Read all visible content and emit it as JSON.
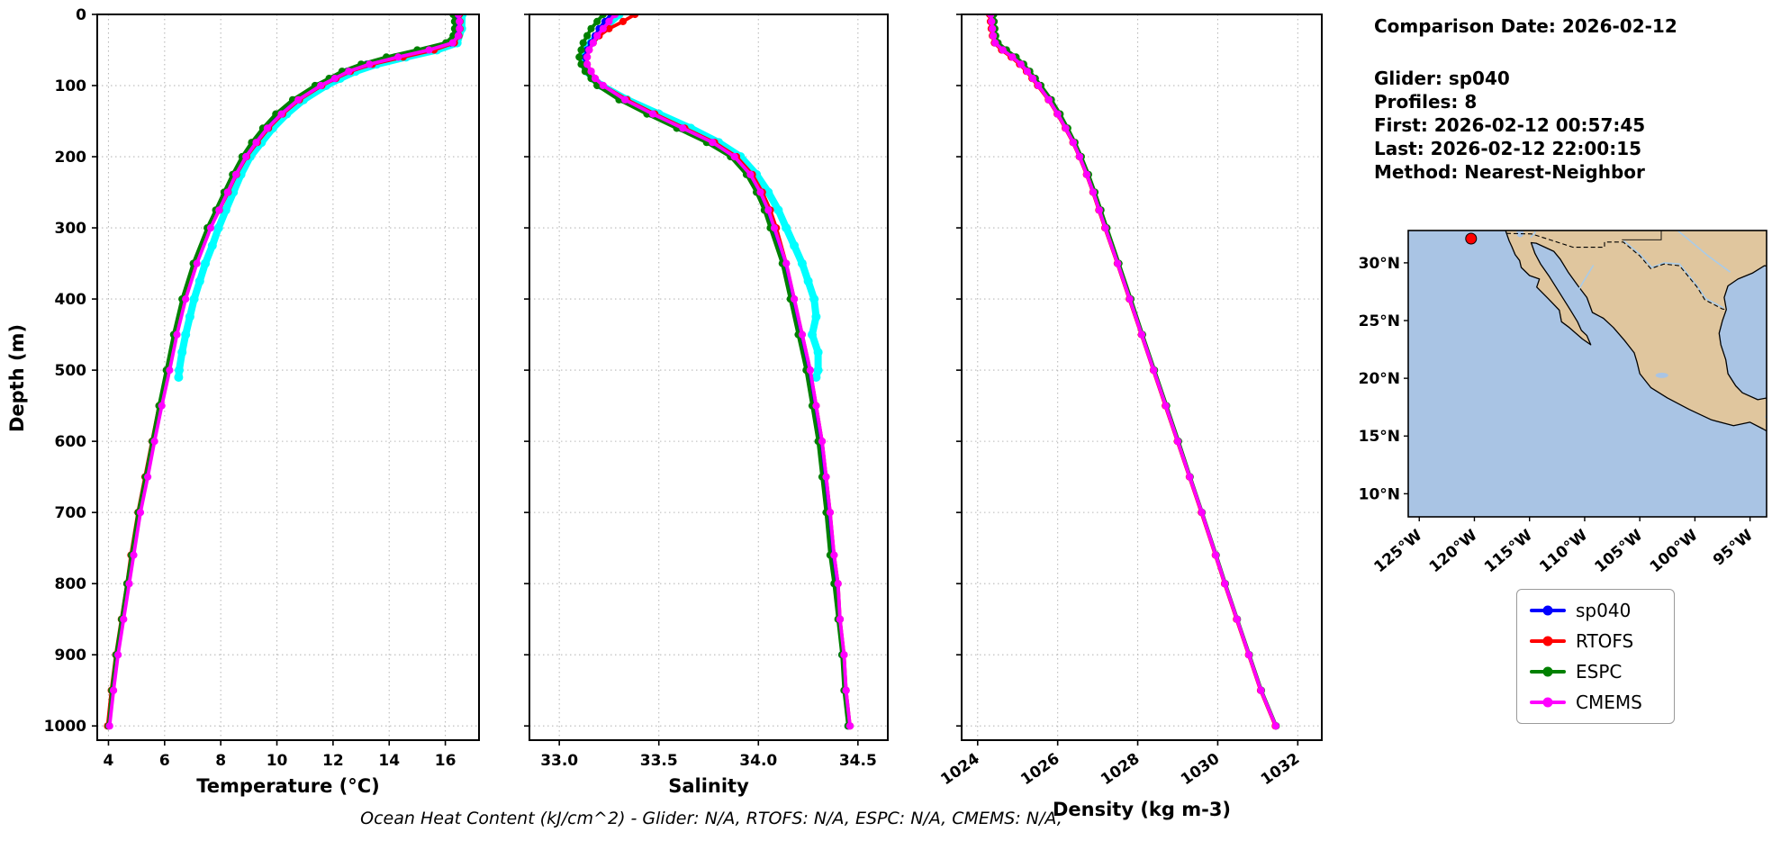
{
  "info_panel": {
    "comparison_date": "Comparison Date: 2026-02-12",
    "glider": "Glider: sp040",
    "profiles": "Profiles: 8",
    "first": "First: 2026-02-12 00:57:45",
    "last": "Last: 2026-02-12 22:00:15",
    "method": "Method: Nearest-Neighbor"
  },
  "footer": {
    "text": "Ocean Heat Content (kJ/cm^2) - Glider: N/A,  RTOFS: N/A,  ESPC: N/A,  CMEMS: N/A,"
  },
  "chart_data": {
    "type": "line",
    "description": "Glider sp040 vs model profiles of temperature, salinity and density versus depth, with location map",
    "depth_label": "Depth (m)",
    "yticks": [
      0,
      100,
      200,
      300,
      400,
      500,
      600,
      700,
      800,
      900,
      1000
    ],
    "depths": [
      0,
      10,
      20,
      30,
      40,
      50,
      60,
      70,
      80,
      90,
      100,
      120,
      140,
      160,
      180,
      200,
      225,
      250,
      275,
      300,
      350,
      400,
      450,
      500,
      550,
      600,
      650,
      700,
      760,
      800,
      850,
      900,
      950,
      1000
    ],
    "raw_depths": [
      0,
      20,
      40,
      50,
      60,
      70,
      80,
      90,
      100,
      120,
      140,
      160,
      180,
      200,
      225,
      250,
      275,
      300,
      325,
      350,
      375,
      400,
      425,
      450,
      475,
      500,
      510
    ],
    "panels": [
      {
        "id": "temperature",
        "xlabel": "Temperature (°C)",
        "xlim": [
          3.6,
          17.2
        ],
        "xticks": [
          4,
          6,
          8,
          10,
          12,
          14,
          16
        ],
        "xtick_labels": [
          "4",
          "6",
          "8",
          "10",
          "12",
          "14",
          "16"
        ],
        "xtick_rotate": 0,
        "show_ytick_labels": true,
        "ylim": [
          0,
          1020
        ]
      },
      {
        "id": "salinity",
        "xlabel": "Salinity",
        "xlim": [
          32.85,
          34.65
        ],
        "xticks": [
          33.0,
          33.5,
          34.0,
          34.5
        ],
        "xtick_labels": [
          "33.0",
          "33.5",
          "34.0",
          "34.5"
        ],
        "xtick_rotate": 0,
        "show_ytick_labels": false,
        "ylim": [
          0,
          1020
        ]
      },
      {
        "id": "density",
        "xlabel": "Density (kg m-3)",
        "xlim": [
          1023.6,
          1032.6
        ],
        "xticks": [
          1024,
          1026,
          1028,
          1030,
          1032
        ],
        "xtick_labels": [
          "1024",
          "1026",
          "1028",
          "1030",
          "1032"
        ],
        "xtick_rotate": -35,
        "show_ytick_labels": false,
        "ylim": [
          0,
          1020
        ]
      }
    ],
    "series": [
      {
        "name": "sp040",
        "color": "#0000FF",
        "temperature": [
          16.4,
          16.45,
          16.45,
          16.4,
          16.2,
          15.3,
          14.2,
          13.2,
          12.5,
          12.0,
          11.5,
          10.7,
          10.1,
          9.6,
          9.2,
          8.85,
          8.5,
          8.2,
          7.9,
          7.6,
          7.1,
          6.7,
          6.4,
          6.15,
          5.85,
          5.6,
          5.35,
          5.1,
          4.85,
          4.7,
          4.5,
          4.3,
          4.15,
          4.0
        ],
        "salinity": [
          33.26,
          33.23,
          33.2,
          33.18,
          33.16,
          33.14,
          33.13,
          33.13,
          33.15,
          33.17,
          33.21,
          33.32,
          33.46,
          33.61,
          33.76,
          33.87,
          33.95,
          34.0,
          34.04,
          34.07,
          34.13,
          34.17,
          34.21,
          34.25,
          34.28,
          34.31,
          34.33,
          34.35,
          34.37,
          34.39,
          34.41,
          34.42,
          34.44,
          34.45
        ],
        "density": [
          1024.35,
          1024.36,
          1024.38,
          1024.4,
          1024.46,
          1024.66,
          1024.9,
          1025.1,
          1025.26,
          1025.4,
          1025.54,
          1025.8,
          1026.02,
          1026.22,
          1026.4,
          1026.56,
          1026.74,
          1026.9,
          1027.05,
          1027.2,
          1027.5,
          1027.8,
          1028.1,
          1028.4,
          1028.7,
          1029.0,
          1029.3,
          1029.6,
          1029.95,
          1030.18,
          1030.48,
          1030.78,
          1031.08,
          1031.45
        ]
      },
      {
        "name": "RTOFS",
        "color": "#FF0000",
        "temperature": [
          16.5,
          16.52,
          16.52,
          16.48,
          16.32,
          15.6,
          14.5,
          13.4,
          12.62,
          12.1,
          11.6,
          10.8,
          10.2,
          9.7,
          9.3,
          8.92,
          8.56,
          8.26,
          7.95,
          7.62,
          7.1,
          6.66,
          6.36,
          6.1,
          5.8,
          5.55,
          5.3,
          5.05,
          4.8,
          4.66,
          4.46,
          4.26,
          4.1,
          3.97
        ],
        "salinity": [
          33.38,
          33.32,
          33.25,
          33.2,
          33.17,
          33.15,
          33.14,
          33.14,
          33.16,
          33.18,
          33.22,
          33.34,
          33.48,
          33.63,
          33.78,
          33.89,
          33.97,
          34.02,
          34.06,
          34.09,
          34.14,
          34.18,
          34.22,
          34.26,
          34.29,
          34.32,
          34.34,
          34.36,
          34.38,
          34.4,
          34.41,
          34.43,
          34.44,
          34.46
        ],
        "density": [
          1024.3,
          1024.32,
          1024.34,
          1024.37,
          1024.42,
          1024.6,
          1024.84,
          1025.05,
          1025.22,
          1025.36,
          1025.5,
          1025.77,
          1025.99,
          1026.19,
          1026.38,
          1026.54,
          1026.72,
          1026.88,
          1027.03,
          1027.18,
          1027.49,
          1027.79,
          1028.09,
          1028.39,
          1028.69,
          1028.99,
          1029.29,
          1029.59,
          1029.94,
          1030.17,
          1030.47,
          1030.77,
          1031.07,
          1031.44
        ]
      },
      {
        "name": "ESPC",
        "color": "#008000",
        "temperature": [
          16.28,
          16.33,
          16.33,
          16.28,
          16.02,
          15.0,
          13.9,
          13.0,
          12.32,
          11.86,
          11.36,
          10.56,
          9.96,
          9.5,
          9.1,
          8.76,
          8.42,
          8.12,
          7.82,
          7.52,
          7.02,
          6.62,
          6.32,
          6.06,
          5.8,
          5.56,
          5.32,
          5.06,
          4.82,
          4.66,
          4.47,
          4.27,
          4.12,
          4.0
        ],
        "salinity": [
          33.22,
          33.19,
          33.16,
          33.14,
          33.12,
          33.11,
          33.1,
          33.11,
          33.13,
          33.16,
          33.19,
          33.3,
          33.44,
          33.59,
          33.74,
          33.86,
          33.94,
          33.99,
          34.03,
          34.06,
          34.12,
          34.16,
          34.2,
          34.24,
          34.27,
          34.3,
          34.32,
          34.34,
          34.36,
          34.38,
          34.4,
          34.42,
          34.43,
          34.45
        ],
        "density": [
          1024.4,
          1024.41,
          1024.43,
          1024.45,
          1024.51,
          1024.72,
          1024.96,
          1025.15,
          1025.3,
          1025.44,
          1025.58,
          1025.84,
          1026.06,
          1026.25,
          1026.43,
          1026.59,
          1026.77,
          1026.93,
          1027.08,
          1027.23,
          1027.53,
          1027.83,
          1028.12,
          1028.42,
          1028.72,
          1029.02,
          1029.31,
          1029.61,
          1029.96,
          1030.19,
          1030.49,
          1030.79,
          1031.09,
          1031.46
        ]
      },
      {
        "name": "CMEMS",
        "color": "#FF00FF",
        "temperature": [
          16.46,
          16.5,
          16.5,
          16.46,
          16.26,
          15.42,
          14.32,
          13.3,
          12.56,
          12.06,
          11.56,
          10.76,
          10.16,
          9.66,
          9.26,
          8.9,
          8.54,
          8.24,
          7.94,
          7.64,
          7.15,
          6.75,
          6.44,
          6.18,
          5.9,
          5.64,
          5.4,
          5.14,
          4.9,
          4.74,
          4.54,
          4.34,
          4.18,
          4.04
        ],
        "salinity": [
          33.28,
          33.25,
          33.22,
          33.19,
          33.17,
          33.15,
          33.14,
          33.14,
          33.16,
          33.18,
          33.22,
          33.33,
          33.47,
          33.62,
          33.77,
          33.88,
          33.96,
          34.01,
          34.05,
          34.08,
          34.14,
          34.18,
          34.22,
          34.26,
          34.29,
          34.32,
          34.34,
          34.36,
          34.38,
          34.4,
          34.41,
          34.43,
          34.44,
          34.46
        ],
        "density": [
          1024.33,
          1024.35,
          1024.37,
          1024.39,
          1024.44,
          1024.63,
          1024.87,
          1025.08,
          1025.24,
          1025.38,
          1025.52,
          1025.78,
          1026.0,
          1026.2,
          1026.39,
          1026.55,
          1026.73,
          1026.89,
          1027.04,
          1027.19,
          1027.5,
          1027.8,
          1028.1,
          1028.4,
          1028.7,
          1029.0,
          1029.3,
          1029.6,
          1029.95,
          1030.18,
          1030.48,
          1030.78,
          1031.08,
          1031.45
        ]
      }
    ],
    "raw": {
      "name": "glider-raw-scatter",
      "color": "#00FFFF",
      "temperature": [
        16.6,
        16.58,
        16.42,
        15.7,
        14.6,
        13.55,
        12.8,
        12.25,
        11.75,
        10.95,
        10.35,
        9.85,
        9.45,
        9.05,
        8.72,
        8.45,
        8.18,
        7.92,
        7.7,
        7.45,
        7.25,
        7.05,
        6.9,
        6.75,
        6.62,
        6.52,
        6.5
      ],
      "salinity": [
        33.3,
        33.22,
        33.16,
        33.13,
        33.12,
        33.12,
        33.14,
        33.17,
        33.21,
        33.34,
        33.5,
        33.66,
        33.8,
        33.91,
        33.99,
        34.05,
        34.1,
        34.14,
        34.18,
        34.22,
        34.25,
        34.28,
        34.29,
        34.27,
        34.3,
        34.3,
        34.29
      ]
    }
  },
  "map": {
    "extent": {
      "lon": [
        -126.0,
        -93.5
      ],
      "lat": [
        8.0,
        32.8
      ]
    },
    "ocean_color": "#a9c4e4",
    "land_color": "#e0c69e",
    "river_color": "#a9cbe8",
    "xticks": [
      -125,
      -120,
      -115,
      -110,
      -105,
      -100,
      -95
    ],
    "xtick_labels": [
      "125°W",
      "120°W",
      "115°W",
      "110°W",
      "105°W",
      "100°W",
      "95°W"
    ],
    "yticks": [
      30,
      25,
      20,
      15,
      10
    ],
    "ytick_labels": [
      "30°N",
      "25°N",
      "20°N",
      "15°N",
      "10°N"
    ],
    "glider_marker": {
      "lon": -120.3,
      "lat": 32.1,
      "color": "#FF0000"
    },
    "land_polygon": [
      [
        -117.3,
        33.5
      ],
      [
        -117.25,
        33.0
      ],
      [
        -117.1,
        32.6
      ],
      [
        -116.85,
        31.9
      ],
      [
        -116.6,
        31.4
      ],
      [
        -116.3,
        30.7
      ],
      [
        -115.9,
        30.2
      ],
      [
        -115.75,
        29.6
      ],
      [
        -115.0,
        28.9
      ],
      [
        -114.1,
        28.6
      ],
      [
        -114.35,
        27.9
      ],
      [
        -113.3,
        26.9
      ],
      [
        -112.3,
        25.9
      ],
      [
        -112.1,
        24.9
      ],
      [
        -111.4,
        24.4
      ],
      [
        -110.2,
        23.4
      ],
      [
        -109.45,
        22.9
      ],
      [
        -109.8,
        23.7
      ],
      [
        -110.3,
        24.15
      ],
      [
        -110.65,
        24.9
      ],
      [
        -111.35,
        26.0
      ],
      [
        -112.4,
        27.6
      ],
      [
        -113.2,
        28.8
      ],
      [
        -114.0,
        29.9
      ],
      [
        -114.5,
        30.8
      ],
      [
        -114.85,
        31.75
      ],
      [
        -114.4,
        31.7
      ],
      [
        -113.6,
        31.35
      ],
      [
        -112.8,
        31.0
      ],
      [
        -112.2,
        30.3
      ],
      [
        -111.5,
        29.2
      ],
      [
        -110.6,
        28.0
      ],
      [
        -109.8,
        27.0
      ],
      [
        -109.3,
        25.7
      ],
      [
        -108.3,
        25.2
      ],
      [
        -107.4,
        24.4
      ],
      [
        -106.4,
        23.3
      ],
      [
        -105.5,
        22.2
      ],
      [
        -105.25,
        21.4
      ],
      [
        -105.0,
        20.4
      ],
      [
        -104.0,
        19.2
      ],
      [
        -102.5,
        18.3
      ],
      [
        -100.5,
        17.3
      ],
      [
        -98.5,
        16.4
      ],
      [
        -96.5,
        15.9
      ],
      [
        -95.0,
        16.2
      ],
      [
        -93.8,
        15.6
      ],
      [
        -92.0,
        14.6
      ],
      [
        -92.0,
        18.45
      ],
      [
        -93.2,
        18.35
      ],
      [
        -94.3,
        18.15
      ],
      [
        -95.7,
        18.75
      ],
      [
        -96.3,
        19.35
      ],
      [
        -97.0,
        20.4
      ],
      [
        -97.2,
        21.6
      ],
      [
        -97.65,
        22.9
      ],
      [
        -97.8,
        23.9
      ],
      [
        -97.5,
        25.0
      ],
      [
        -97.15,
        25.95
      ],
      [
        -97.35,
        27.0
      ],
      [
        -97.0,
        28.0
      ],
      [
        -96.1,
        28.6
      ],
      [
        -94.8,
        29.1
      ],
      [
        -93.7,
        29.75
      ],
      [
        -92.0,
        29.6
      ],
      [
        -92.0,
        33.5
      ]
    ],
    "border_dashed": [
      [
        -117.1,
        32.55
      ],
      [
        -114.8,
        32.5
      ],
      [
        -111.05,
        31.35
      ],
      [
        -108.2,
        31.35
      ],
      [
        -108.2,
        31.8
      ],
      [
        -106.5,
        31.8
      ],
      [
        -105.0,
        30.6
      ],
      [
        -104.0,
        29.5
      ],
      [
        -102.8,
        29.9
      ],
      [
        -101.4,
        29.75
      ],
      [
        -99.8,
        27.9
      ],
      [
        -99.1,
        26.8
      ],
      [
        -97.5,
        26.0
      ],
      [
        -97.15,
        25.95
      ]
    ],
    "state_border": [
      [
        -103.05,
        33.5
      ],
      [
        -103.05,
        32.0
      ],
      [
        -106.62,
        32.0
      ]
    ],
    "rivers": [
      [
        [
          -106.45,
          31.9
        ],
        [
          -105.0,
          30.75
        ],
        [
          -103.9,
          29.6
        ],
        [
          -102.8,
          30.0
        ],
        [
          -101.4,
          29.9
        ],
        [
          -99.8,
          28.0
        ],
        [
          -99.0,
          26.9
        ],
        [
          -97.4,
          26.1
        ]
      ],
      [
        [
          -102.5,
          33.5
        ],
        [
          -100.8,
          32.2
        ],
        [
          -98.8,
          30.6
        ],
        [
          -96.8,
          29.2
        ]
      ],
      [
        [
          -109.2,
          29.8
        ],
        [
          -110.1,
          28.4
        ],
        [
          -110.6,
          27.6
        ]
      ],
      [
        [
          -93.6,
          16.6
        ],
        [
          -93.0,
          17.7
        ],
        [
          -92.5,
          18.3
        ]
      ],
      [
        [
          -114.6,
          33.5
        ],
        [
          -114.5,
          32.6
        ],
        [
          -114.9,
          32.2
        ]
      ]
    ],
    "lakes": [
      {
        "lon": -103.0,
        "lat": 20.25,
        "rx": 7,
        "ry": 3
      },
      {
        "lon": -115.85,
        "lat": 32.6,
        "rx": 4,
        "ry": 5
      }
    ]
  }
}
